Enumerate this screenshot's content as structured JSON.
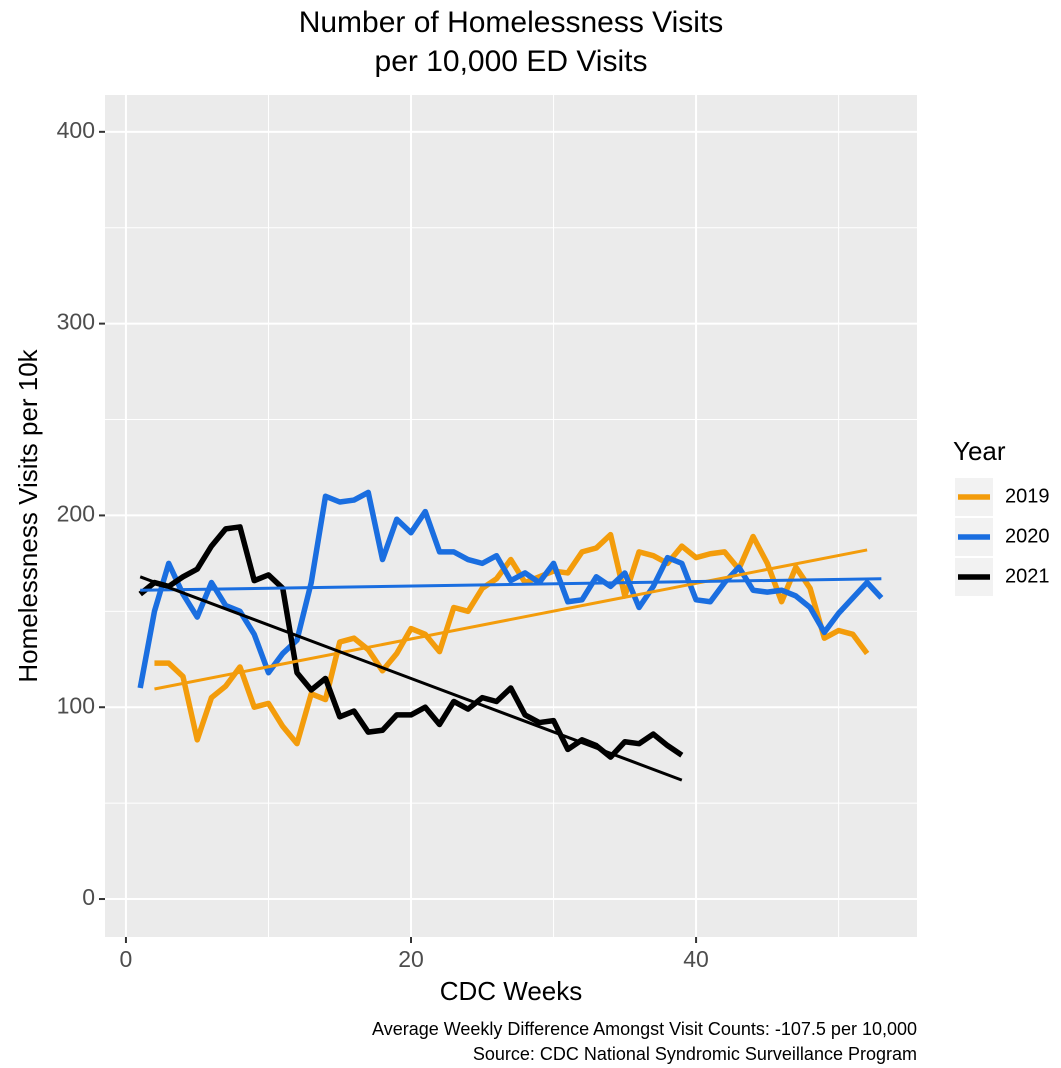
{
  "chart_data": {
    "type": "line",
    "title": [
      "Number of Homelessness Visits",
      "per 10,000 ED Visits"
    ],
    "x_label": "CDC Weeks",
    "y_label": "Homelessness Visits per 10k",
    "legend_title": "Year",
    "caption": [
      "Average Weekly Difference Amongst Visit Counts: -107.5 per 10,000",
      "Source: CDC National Syndromic Surveillance Program"
    ],
    "xlim": [
      -1.47,
      55.5
    ],
    "ylim": [
      -19.8,
      419.2
    ],
    "xticks": [
      0,
      20,
      40
    ],
    "yticks": [
      0,
      100,
      200,
      300,
      400
    ],
    "x_minor_grid": [
      10,
      30,
      50
    ],
    "y_minor_grid": [
      50,
      150,
      250,
      350
    ],
    "grid": true,
    "legend_position": "right",
    "series": [
      {
        "name": "2019",
        "color": "#f39c0b",
        "x": [
          2,
          3,
          4,
          5,
          6,
          7,
          8,
          9,
          10,
          11,
          12,
          13,
          14,
          15,
          16,
          17,
          18,
          19,
          20,
          21,
          22,
          23,
          24,
          25,
          26,
          27,
          28,
          29,
          30,
          31,
          32,
          33,
          34,
          35,
          36,
          37,
          38,
          39,
          40,
          41,
          42,
          43,
          44,
          45,
          46,
          47,
          48,
          49,
          50,
          51,
          52
        ],
        "values": [
          123,
          123,
          116,
          83,
          105,
          111,
          121,
          100,
          102,
          90,
          81,
          107,
          104,
          134,
          136,
          130,
          119,
          128,
          141,
          138,
          129,
          152,
          150,
          162,
          167,
          177,
          165,
          168,
          171,
          170,
          181,
          183,
          190,
          158,
          181,
          179,
          175,
          184,
          178,
          180,
          181,
          172,
          189,
          175,
          155,
          173,
          162,
          136,
          140,
          138,
          128
        ],
        "trend": {
          "x": [
            2,
            52
          ],
          "values": [
            109.5,
            182
          ]
        }
      },
      {
        "name": "2020",
        "color": "#1a6ee0",
        "x": [
          1,
          2,
          3,
          4,
          5,
          6,
          7,
          8,
          9,
          10,
          11,
          12,
          13,
          14,
          15,
          16,
          17,
          18,
          19,
          20,
          21,
          22,
          23,
          24,
          25,
          26,
          27,
          28,
          29,
          30,
          31,
          32,
          33,
          34,
          35,
          36,
          37,
          38,
          39,
          40,
          41,
          42,
          43,
          44,
          45,
          46,
          47,
          48,
          49,
          50,
          51,
          52,
          53
        ],
        "values": [
          110,
          150,
          175,
          159,
          147,
          165,
          153,
          150,
          138,
          118,
          128,
          135,
          165,
          210,
          207,
          208,
          212,
          177,
          198,
          191,
          202,
          181,
          181,
          177,
          175,
          179,
          166,
          170,
          165,
          175,
          155,
          156,
          168,
          163,
          170,
          152,
          163,
          178,
          175,
          156,
          155,
          165,
          173,
          161,
          160,
          161,
          158,
          152,
          139,
          149,
          157,
          165,
          157
        ],
        "trend": {
          "x": [
            1,
            53
          ],
          "values": [
            161,
            167
          ]
        }
      },
      {
        "name": "2021",
        "color": "#000000",
        "x": [
          1,
          2,
          3,
          4,
          5,
          6,
          7,
          8,
          9,
          10,
          11,
          12,
          13,
          14,
          15,
          16,
          17,
          18,
          19,
          20,
          21,
          22,
          23,
          24,
          25,
          26,
          27,
          28,
          29,
          30,
          31,
          32,
          33,
          34,
          35,
          36,
          37,
          38,
          39
        ],
        "values": [
          159,
          165,
          163,
          168,
          172,
          184,
          193,
          194,
          166,
          169,
          162,
          118,
          109,
          115,
          95,
          98,
          87,
          88,
          96,
          96,
          100,
          91,
          103,
          99,
          105,
          103,
          110,
          96,
          92,
          93,
          78,
          83,
          80,
          74,
          82,
          81,
          86,
          80,
          75
        ],
        "trend": {
          "x": [
            1,
            39
          ],
          "values": [
            168,
            62
          ]
        }
      }
    ]
  }
}
